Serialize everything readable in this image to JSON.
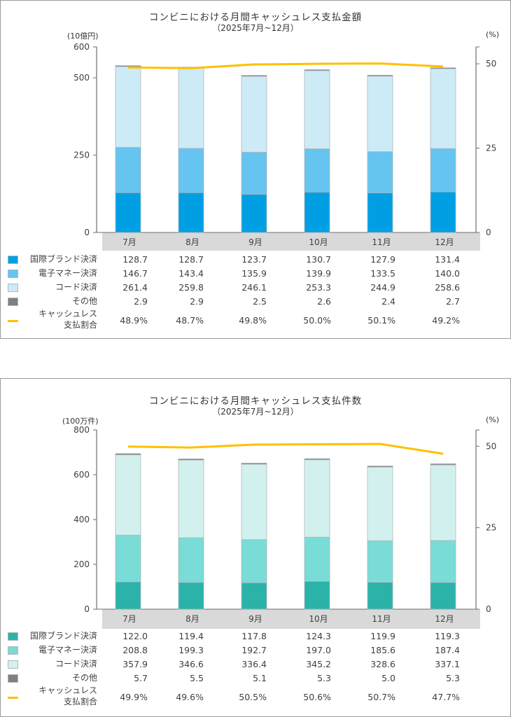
{
  "chart_data": [
    {
      "type": "bar",
      "stacked": true,
      "title": "コンビニにおける月間キャッシュレス支払金額",
      "subtitle": "（2025年7月~12月）",
      "ylabel": "(10億円)",
      "y2label": "(%)",
      "ylim": [
        0,
        600
      ],
      "yticks": [
        0,
        250,
        500,
        600
      ],
      "y2lim": [
        0,
        55
      ],
      "y2ticks": [
        0,
        25,
        50
      ],
      "categories": [
        "7月",
        "8月",
        "9月",
        "10月",
        "11月",
        "12月"
      ],
      "series": [
        {
          "name": "国際ブランド決済",
          "color": "#009FE3",
          "values": [
            "128.7",
            "128.7",
            "123.7",
            "130.7",
            "127.9",
            "131.4"
          ]
        },
        {
          "name": "電子マネー決済",
          "color": "#66C4F0",
          "values": [
            "146.7",
            "143.4",
            "135.9",
            "139.9",
            "133.5",
            "140.0"
          ]
        },
        {
          "name": "コード決済",
          "color": "#CDEBF7",
          "values": [
            "261.4",
            "259.8",
            "246.1",
            "253.3",
            "244.9",
            "258.6"
          ]
        },
        {
          "name": "その他",
          "color": "#7F7F7F",
          "values": [
            "2.9",
            "2.9",
            "2.5",
            "2.6",
            "2.4",
            "2.7"
          ]
        }
      ],
      "line": {
        "name_line1": "キャッシュレス",
        "name_line2": "支払割合",
        "color": "#FFC000",
        "values": [
          48.9,
          48.7,
          49.8,
          50.0,
          50.1,
          49.2
        ],
        "labels": [
          "48.9%",
          "48.7%",
          "49.8%",
          "50.0%",
          "50.1%",
          "49.2%"
        ]
      },
      "grid": false,
      "legend": "bottom-left table"
    },
    {
      "type": "bar",
      "stacked": true,
      "title": "コンビニにおける月間キャッシュレス支払件数",
      "subtitle": "（2025年7月~12月）",
      "ylabel": "(100万件)",
      "y2label": "(%)",
      "ylim": [
        0,
        800
      ],
      "yticks": [
        0,
        200,
        400,
        600,
        800
      ],
      "y2lim": [
        0,
        55
      ],
      "y2ticks": [
        0,
        25,
        50
      ],
      "categories": [
        "7月",
        "8月",
        "9月",
        "10月",
        "11月",
        "12月"
      ],
      "series": [
        {
          "name": "国際ブランド決済",
          "color": "#2BB3AA",
          "values": [
            "122.0",
            "119.4",
            "117.8",
            "124.3",
            "119.9",
            "119.3"
          ]
        },
        {
          "name": "電子マネー決済",
          "color": "#79DCD6",
          "values": [
            "208.8",
            "199.3",
            "192.7",
            "197.0",
            "185.6",
            "187.4"
          ]
        },
        {
          "name": "コード決済",
          "color": "#D2F1EE",
          "values": [
            "357.9",
            "346.6",
            "336.4",
            "345.2",
            "328.6",
            "337.1"
          ]
        },
        {
          "name": "その他",
          "color": "#7F7F7F",
          "values": [
            "5.7",
            "5.5",
            "5.1",
            "5.3",
            "5.0",
            "5.3"
          ]
        }
      ],
      "line": {
        "name_line1": "キャッシュレス",
        "name_line2": "支払割合",
        "color": "#FFC000",
        "values": [
          49.9,
          49.6,
          50.5,
          50.6,
          50.7,
          47.7
        ],
        "labels": [
          "49.9%",
          "49.6%",
          "50.5%",
          "50.6%",
          "50.7%",
          "47.7%"
        ]
      },
      "grid": false,
      "legend": "bottom-left table"
    }
  ]
}
